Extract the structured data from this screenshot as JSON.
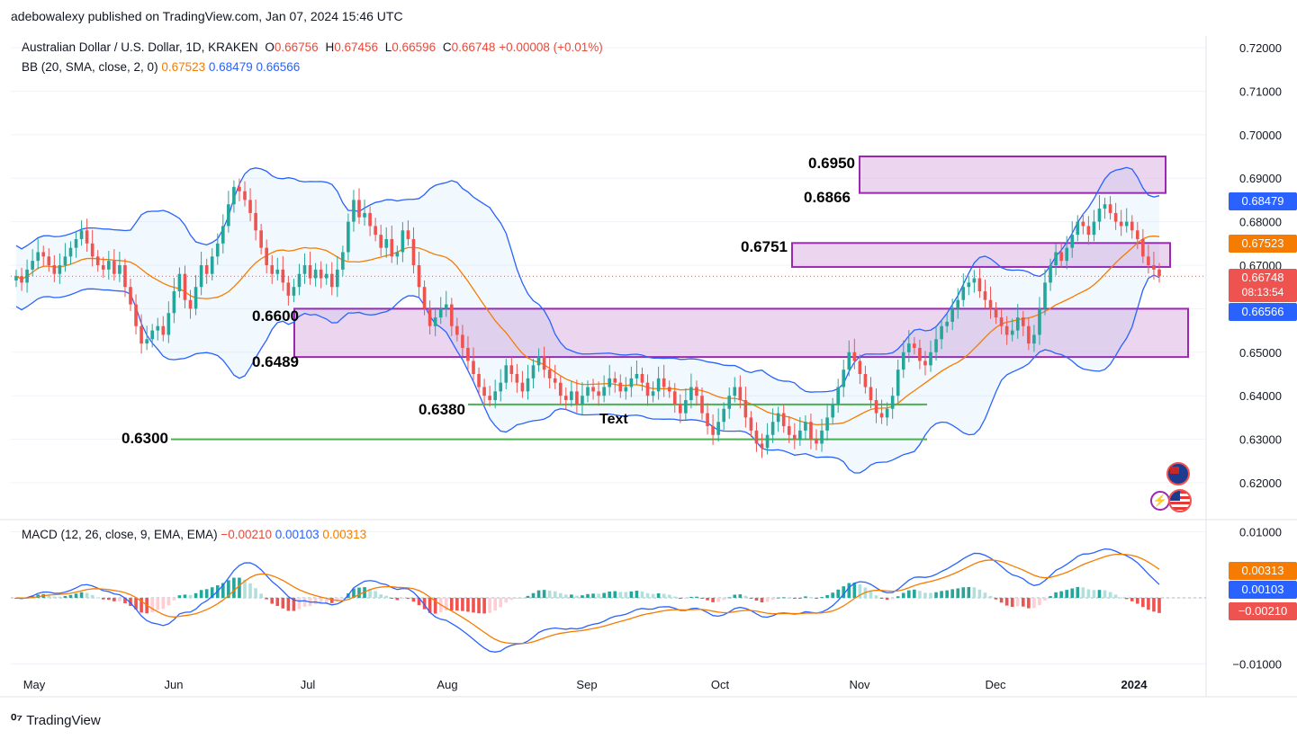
{
  "header": {
    "publisher_line": "adebowalexy published on TradingView.com, Jan 07, 2024 15:46 UTC"
  },
  "legend": {
    "symbol": "Australian Dollar / U.S. Dollar, 1D, KRAKEN",
    "open_label": "O",
    "open": "0.66756",
    "high_label": "H",
    "high": "0.67456",
    "low_label": "L",
    "low": "0.66596",
    "close_label": "C",
    "close": "0.66748",
    "change": "+0.00008 (+0.01%)",
    "bb_label": "BB (20, SMA, close, 2, 0)",
    "bb_basis": "0.67523",
    "bb_upper": "0.68479",
    "bb_lower": "0.66566",
    "macd_label": "MACD (12, 26, close, 9, EMA, EMA)",
    "macd_hist": "−0.00210",
    "macd_line": "0.00103",
    "macd_signal": "0.00313"
  },
  "price_tags": {
    "bb_upper": "0.68479",
    "bb_basis": "0.67523",
    "last_price": "0.66748",
    "countdown": "08:13:54",
    "bb_lower": "0.66566",
    "macd_signal": "0.00313",
    "macd_line": "0.00103",
    "macd_hist": "−0.00210"
  },
  "colors": {
    "up": "#26a69a",
    "down": "#ef5350",
    "bb_band": "#2962ff",
    "bb_basis": "#f57c00",
    "zone_fill": "#e1bee7",
    "zone_border": "#9c27b0",
    "support_line": "#4caf50",
    "macd_line": "#2962ff",
    "signal_line": "#f57c00",
    "last_price": "#ef5350"
  },
  "footer": {
    "brand": "TradingView"
  },
  "chart_data": {
    "type": "candlestick",
    "title": "Australian Dollar / U.S. Dollar, 1D, KRAKEN",
    "x_tick_labels": [
      "May",
      "Jun",
      "Jul",
      "Aug",
      "Sep",
      "Oct",
      "Nov",
      "Dec",
      "2024"
    ],
    "price_axis": {
      "ylim": [
        0.615,
        0.725
      ],
      "ticks": [
        "0.72000",
        "0.71000",
        "0.70000",
        "0.69000",
        "0.68000",
        "0.67000",
        "0.65000",
        "0.64000",
        "0.63000",
        "0.62000"
      ]
    },
    "macd_axis": {
      "ylim": [
        -0.0105,
        0.0105
      ],
      "ticks": [
        "0.01000",
        "−0.01000"
      ]
    },
    "zones": [
      {
        "upper": 0.695,
        "lower": 0.6866,
        "upper_label": "0.6950",
        "lower_label": "0.6866"
      },
      {
        "upper": 0.6751,
        "lower": 0.6696,
        "upper_label": "0.6751",
        "lower_label": ""
      },
      {
        "upper": 0.66,
        "lower": 0.6489,
        "upper_label": "0.6600",
        "lower_label": "0.6489"
      }
    ],
    "support_lines": [
      {
        "value": 0.638,
        "label": "0.6380",
        "note": "Text"
      },
      {
        "value": 0.63,
        "label": "0.6300",
        "note": ""
      }
    ],
    "closes": [
      0.6675,
      0.666,
      0.669,
      0.671,
      0.673,
      0.672,
      0.67,
      0.668,
      0.67,
      0.672,
      0.674,
      0.676,
      0.678,
      0.675,
      0.672,
      0.67,
      0.669,
      0.671,
      0.668,
      0.67,
      0.665,
      0.661,
      0.656,
      0.652,
      0.653,
      0.655,
      0.656,
      0.654,
      0.659,
      0.664,
      0.668,
      0.662,
      0.66,
      0.665,
      0.67,
      0.668,
      0.672,
      0.675,
      0.679,
      0.684,
      0.688,
      0.687,
      0.685,
      0.682,
      0.678,
      0.674,
      0.67,
      0.668,
      0.669,
      0.666,
      0.663,
      0.665,
      0.668,
      0.67,
      0.667,
      0.669,
      0.667,
      0.668,
      0.665,
      0.669,
      0.673,
      0.68,
      0.685,
      0.681,
      0.682,
      0.679,
      0.677,
      0.674,
      0.676,
      0.672,
      0.673,
      0.678,
      0.676,
      0.67,
      0.665,
      0.66,
      0.656,
      0.658,
      0.66,
      0.661,
      0.656,
      0.654,
      0.651,
      0.648,
      0.645,
      0.642,
      0.64,
      0.639,
      0.641,
      0.643,
      0.647,
      0.645,
      0.643,
      0.641,
      0.644,
      0.647,
      0.649,
      0.646,
      0.644,
      0.643,
      0.64,
      0.639,
      0.641,
      0.638,
      0.64,
      0.642,
      0.641,
      0.64,
      0.642,
      0.644,
      0.643,
      0.641,
      0.642,
      0.644,
      0.645,
      0.643,
      0.64,
      0.641,
      0.644,
      0.642,
      0.641,
      0.638,
      0.636,
      0.639,
      0.642,
      0.64,
      0.636,
      0.633,
      0.631,
      0.634,
      0.637,
      0.64,
      0.642,
      0.639,
      0.635,
      0.632,
      0.629,
      0.628,
      0.631,
      0.634,
      0.636,
      0.633,
      0.631,
      0.63,
      0.632,
      0.634,
      0.63,
      0.629,
      0.632,
      0.635,
      0.638,
      0.642,
      0.646,
      0.65,
      0.648,
      0.645,
      0.642,
      0.639,
      0.636,
      0.635,
      0.637,
      0.64,
      0.646,
      0.65,
      0.652,
      0.651,
      0.648,
      0.647,
      0.65,
      0.653,
      0.656,
      0.657,
      0.66,
      0.662,
      0.665,
      0.666,
      0.667,
      0.664,
      0.662,
      0.66,
      0.658,
      0.656,
      0.654,
      0.655,
      0.658,
      0.656,
      0.652,
      0.654,
      0.66,
      0.666,
      0.67,
      0.673,
      0.671,
      0.674,
      0.677,
      0.68,
      0.679,
      0.677,
      0.68,
      0.683,
      0.684,
      0.682,
      0.68,
      0.679,
      0.68,
      0.678,
      0.676,
      0.672,
      0.67,
      0.669,
      0.6675
    ],
    "bb_upper_last": 0.68479,
    "bb_basis_last": 0.67523,
    "bb_lower_last": 0.66566,
    "macd_last": {
      "macd": 0.00103,
      "signal": 0.00313,
      "histogram": -0.0021
    }
  }
}
